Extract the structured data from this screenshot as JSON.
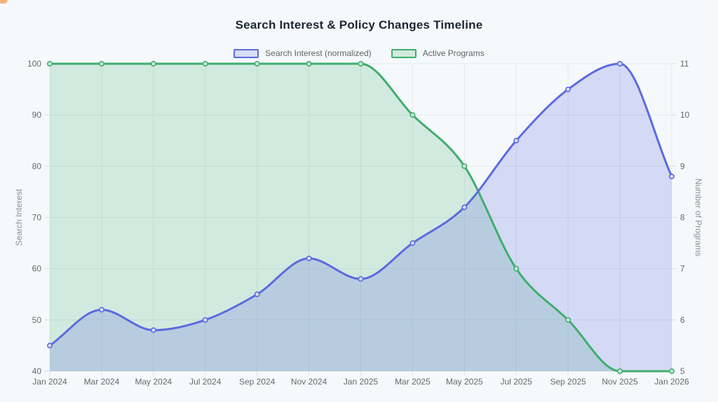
{
  "page": {
    "background": "#f6f9fc"
  },
  "colors": {
    "grid": "#e4e8ec",
    "tick_mark": "#d9dee3",
    "tick_text": "#65696e",
    "axis_title_text": "#8b9096",
    "title_text": "#1c2534",
    "legend_text": "#5f646a"
  },
  "chart_data": {
    "type": "line",
    "title": "Search Interest & Policy Changes Timeline",
    "curve": "monotone",
    "grid": true,
    "legend_position": "top",
    "x_labels": [
      "Jan 2024",
      "Mar 2024",
      "May 2024",
      "Jul 2024",
      "Sep 2024",
      "Nov 2024",
      "Jan 2025",
      "Mar 2025",
      "May 2025",
      "Jul 2025",
      "Sep 2025",
      "Nov 2025",
      "Jan 2026"
    ],
    "series": [
      {
        "name": "Search Interest (normalized)",
        "yAxis": "left",
        "line_color": "#5b6be0",
        "fill_color": "rgba(92,104,224,0.22)",
        "point_fill": "#d9dcf6",
        "values": [
          45,
          52,
          48,
          50,
          55,
          62,
          58,
          65,
          72,
          85,
          95,
          100,
          78
        ]
      },
      {
        "name": "Active Programs",
        "yAxis": "right",
        "line_color": "#3fae6d",
        "fill_color": "rgba(63,174,109,0.20)",
        "point_fill": "#d3e9dd",
        "values": [
          11,
          11,
          11,
          11,
          11,
          11,
          11,
          10,
          9,
          7,
          6,
          5,
          5
        ]
      }
    ],
    "left_axis": {
      "label": "Search Interest",
      "min": 40,
      "max": 100,
      "ticks": [
        40,
        50,
        60,
        70,
        80,
        90,
        100
      ]
    },
    "right_axis": {
      "label": "Number of Programs",
      "min": 5,
      "max": 11,
      "ticks": [
        5,
        6,
        7,
        8,
        9,
        10,
        11
      ]
    }
  }
}
